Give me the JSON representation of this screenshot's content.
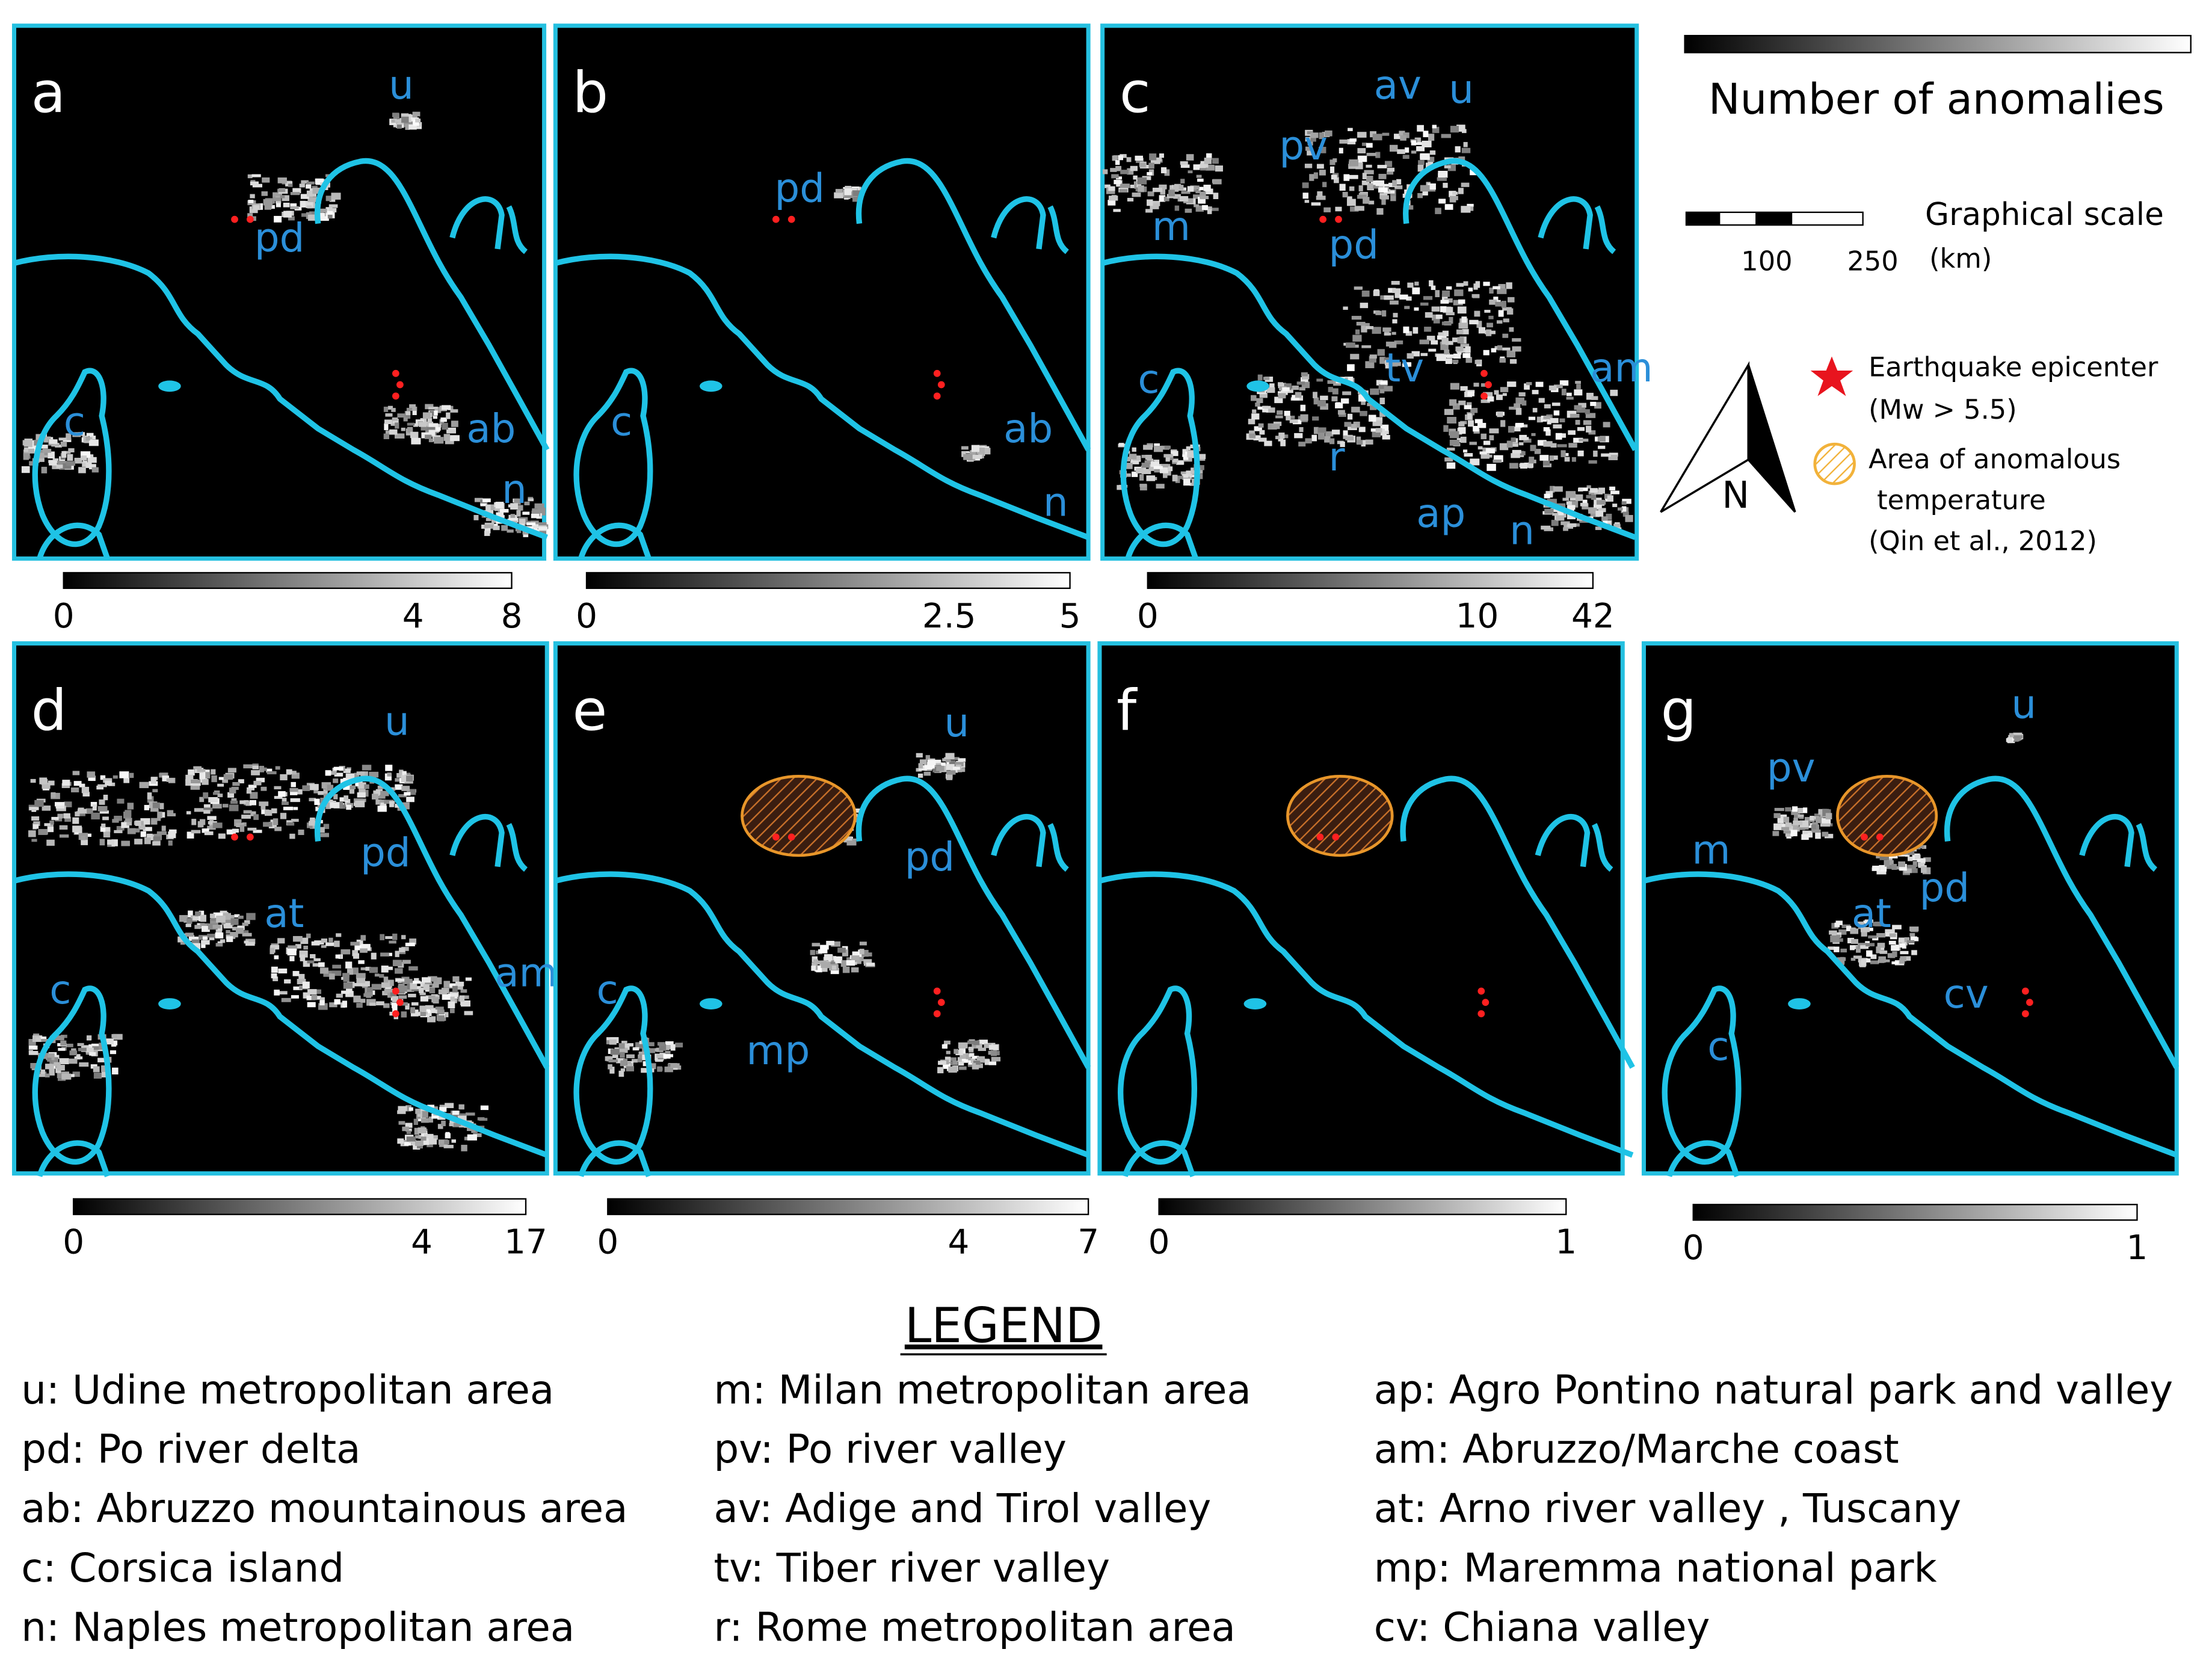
{
  "panels": [
    {
      "letter": "a",
      "labels": [
        "u",
        "pd",
        "c",
        "ab",
        "n"
      ],
      "colorbar": [
        0,
        4,
        8
      ]
    },
    {
      "letter": "b",
      "labels": [
        "pd",
        "c",
        "ab",
        "n"
      ],
      "colorbar": [
        0,
        2.5,
        5
      ]
    },
    {
      "letter": "c",
      "labels": [
        "av",
        "u",
        "pv",
        "m",
        "pd",
        "c",
        "tv",
        "am",
        "r",
        "ap",
        "n"
      ],
      "colorbar": [
        0,
        10,
        42
      ]
    },
    {
      "letter": "d",
      "labels": [
        "u",
        "pd",
        "at",
        "c",
        "am"
      ],
      "colorbar": [
        0,
        4,
        17
      ]
    },
    {
      "letter": "e",
      "labels": [
        "u",
        "pd",
        "c",
        "mp"
      ],
      "colorbar": [
        0,
        4,
        7
      ]
    },
    {
      "letter": "f",
      "labels": [],
      "colorbar": [
        0,
        1
      ]
    },
    {
      "letter": "g",
      "labels": [
        "u",
        "pv",
        "m",
        "pd",
        "at",
        "cv",
        "c"
      ],
      "colorbar": [
        0,
        1
      ]
    }
  ],
  "key": {
    "colorbar_title": "Number of anomalies",
    "scale_title": "Graphical scale",
    "scale_ticks": [
      100,
      250
    ],
    "scale_unit": "(km)",
    "north": "N",
    "epicenter": [
      "Earthquake epicenter",
      "(Mw > 5.5)"
    ],
    "area": [
      "Area of anomalous",
      "temperature",
      "(Qin et al., 2012)"
    ]
  },
  "legend": {
    "title": "LEGEND",
    "columns": [
      [
        "u: Udine metropolitan area",
        "pd: Po river delta",
        "ab: Abruzzo mountainous area",
        "c: Corsica island",
        "n: Naples metropolitan area"
      ],
      [
        "m:  Milan metropolitan area",
        "pv: Po river valley",
        "av: Adige and Tirol valley",
        "tv: Tiber river valley",
        "r: Rome metropolitan area"
      ],
      [
        "ap: Agro Pontino natural park and valley",
        "am: Abruzzo/Marche coast",
        "at: Arno river valley , Tuscany",
        "mp: Maremma national park",
        "cv: Chiana valley"
      ]
    ]
  }
}
